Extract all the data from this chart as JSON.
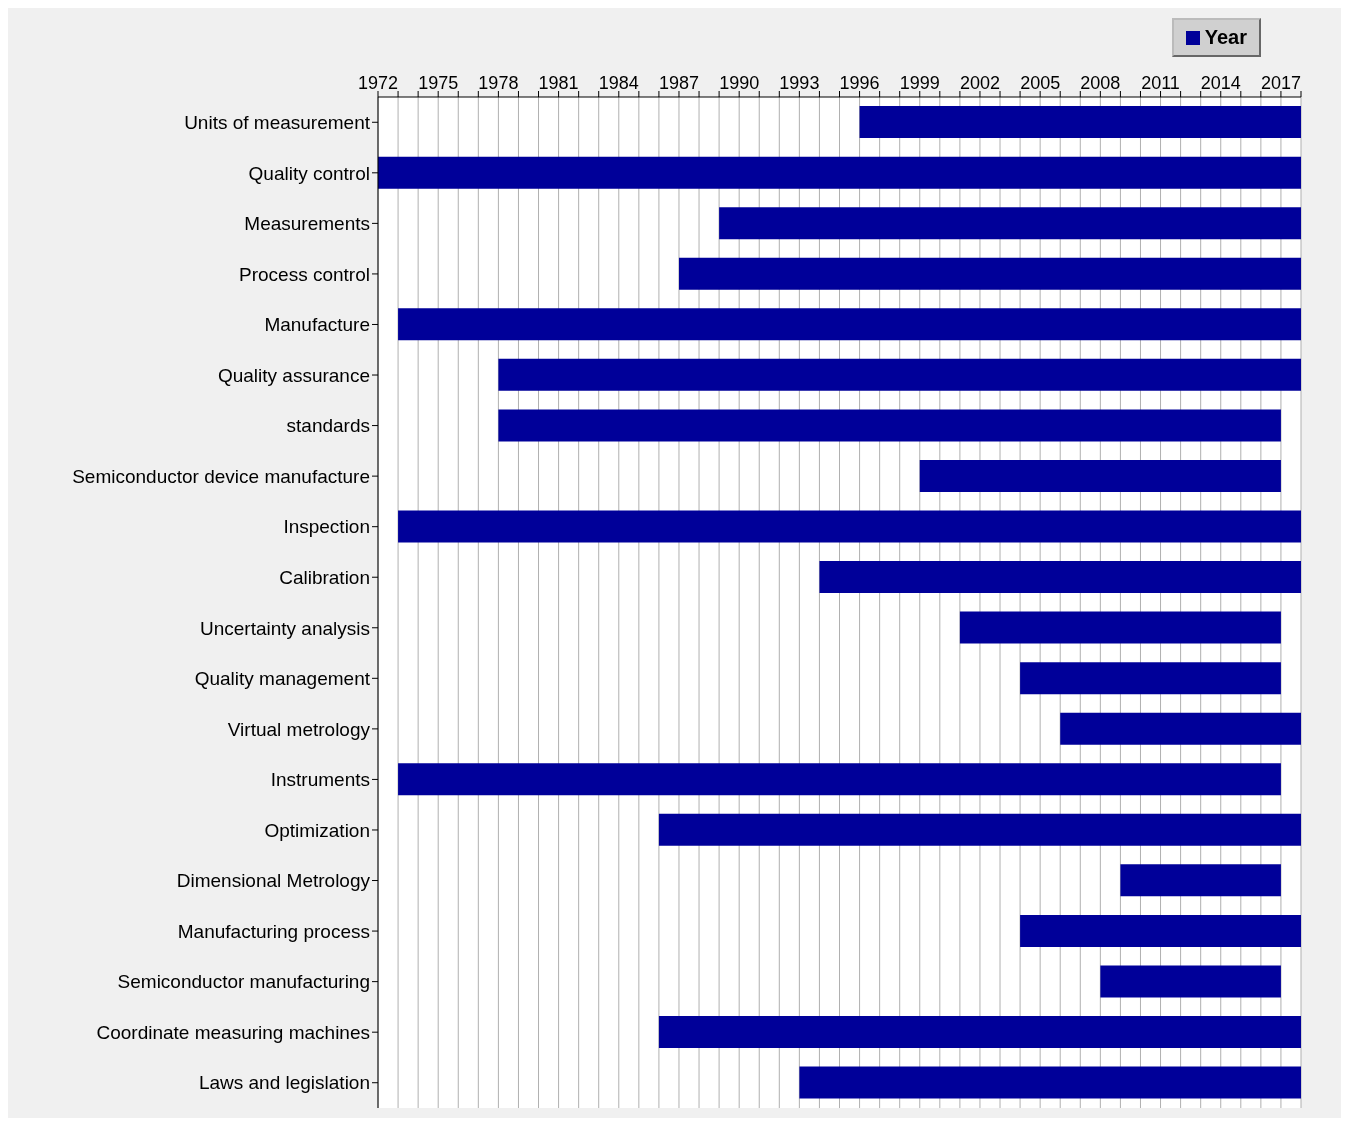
{
  "chart_data": {
    "type": "bar",
    "orientation": "horizontal",
    "categories": [
      "Units of measurement",
      "Quality control",
      "Measurements",
      "Process control",
      "Manufacture",
      "Quality assurance",
      "standards",
      "Semiconductor device manufacture",
      "Inspection",
      "Calibration",
      "Uncertainty analysis",
      "Quality management",
      "Virtual metrology",
      "Instruments",
      "Optimization",
      "Dimensional Metrology",
      "Manufacturing process",
      "Semiconductor manufacturing",
      "Coordinate measuring machines",
      "Laws and legislation"
    ],
    "series": [
      {
        "name": "Year",
        "color": "#000099",
        "base": [
          1996,
          1972,
          1989,
          1987,
          1973,
          1978,
          1978,
          1999,
          1973,
          1994,
          2001,
          2004,
          2006,
          1973,
          1986,
          2009,
          2004,
          2008,
          1986,
          1993
        ],
        "values": [
          22,
          46,
          29,
          31,
          45,
          40,
          39,
          18,
          45,
          24,
          16,
          13,
          12,
          44,
          32,
          8,
          14,
          9,
          32,
          25
        ]
      }
    ],
    "xlim": [
      1972,
      2018
    ],
    "xticks": [
      1972,
      {
        "value": 1973,
        "label": null
      },
      {
        "value": 1974,
        "label": null
      },
      1975,
      {
        "value": 1976,
        "label": null
      },
      {
        "value": 1977,
        "label": null
      },
      1978,
      {
        "value": 1979,
        "label": null
      },
      {
        "value": 1980,
        "label": null
      },
      1981,
      {
        "value": 1982,
        "label": null
      },
      {
        "value": 1983,
        "label": null
      },
      1984,
      {
        "value": 1985,
        "label": null
      },
      {
        "value": 1986,
        "label": null
      },
      1987,
      {
        "value": 1988,
        "label": null
      },
      {
        "value": 1989,
        "label": null
      },
      1990,
      {
        "value": 1991,
        "label": null
      },
      {
        "value": 1992,
        "label": null
      },
      1993,
      {
        "value": 1994,
        "label": null
      },
      {
        "value": 1995,
        "label": null
      },
      1996,
      {
        "value": 1997,
        "label": null
      },
      {
        "value": 1998,
        "label": null
      },
      1999,
      {
        "value": 2000,
        "label": null
      },
      {
        "value": 2001,
        "label": null
      },
      2002,
      {
        "value": 2003,
        "label": null
      },
      {
        "value": 2004,
        "label": null
      },
      2005,
      {
        "value": 2006,
        "label": null
      },
      {
        "value": 2007,
        "label": null
      },
      2008,
      {
        "value": 2009,
        "label": null
      },
      {
        "value": 2010,
        "label": null
      },
      2011,
      {
        "value": 2012,
        "label": null
      },
      {
        "value": 2013,
        "label": null
      },
      2014,
      {
        "value": 2015,
        "label": null
      },
      {
        "value": 2016,
        "label": null
      },
      2017,
      {
        "value": 2018,
        "label": null
      }
    ],
    "grid": "x",
    "legend": "top right"
  }
}
